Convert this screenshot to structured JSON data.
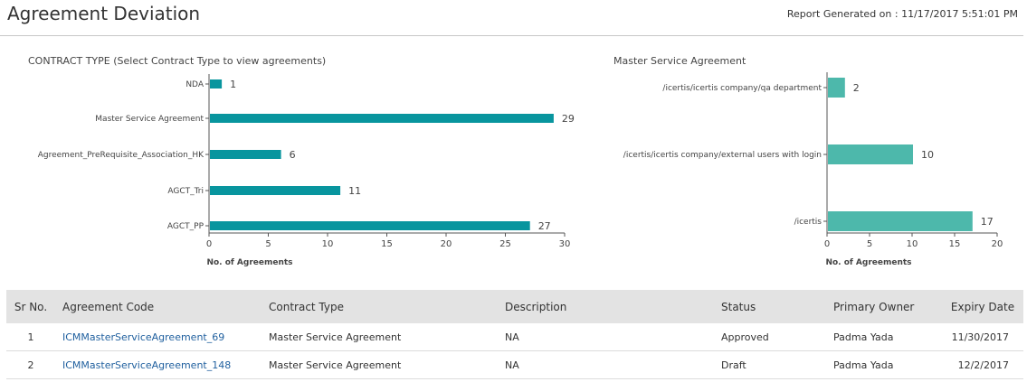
{
  "header": {
    "title": "Agreement Deviation",
    "report_generated": "Report Generated on : 11/17/2017 5:51:01 PM"
  },
  "chart_data": [
    {
      "type": "bar",
      "orientation": "horizontal",
      "title": "CONTRACT TYPE (Select Contract Type to view agreements)",
      "categories": [
        "NDA",
        "Master Service Agreement",
        "Agreement_PreRequisite_Association_HK",
        "AGCT_Tri",
        "AGCT_PP"
      ],
      "values": [
        1,
        29,
        6,
        11,
        27
      ],
      "value_labels": [
        "1",
        "29",
        "6",
        "11",
        "27"
      ],
      "xlabel": "No. of Agreements",
      "xlim": [
        0,
        30
      ],
      "ticks": [
        0,
        5,
        10,
        15,
        20,
        25,
        30
      ],
      "color": "#08959e",
      "grid": false
    },
    {
      "type": "bar",
      "orientation": "horizontal",
      "title": "Master Service Agreement",
      "categories": [
        "/icertis/icertis company/qa department",
        "/icertis/icertis company/external users with login",
        "/icertis"
      ],
      "values": [
        2,
        10,
        17
      ],
      "value_labels": [
        "2",
        "10",
        "17"
      ],
      "xlabel": "No. of Agreements",
      "xlim": [
        0,
        20
      ],
      "ticks": [
        0,
        5,
        10,
        15,
        20
      ],
      "color": "#4db8ab",
      "grid": false
    }
  ],
  "table": {
    "columns": [
      "Sr No.",
      "Agreement Code",
      "Contract Type",
      "Description",
      "Status",
      "Primary Owner",
      "Expiry Date"
    ],
    "rows": [
      [
        "1",
        "ICMMasterServiceAgreement_69",
        "Master Service Agreement",
        "NA",
        "Approved",
        "Padma Yada",
        "11/30/2017"
      ],
      [
        "2",
        "ICMMasterServiceAgreement_148",
        "Master Service Agreement",
        "NA",
        "Draft",
        "Padma Yada",
        "12/2/2017"
      ]
    ]
  }
}
